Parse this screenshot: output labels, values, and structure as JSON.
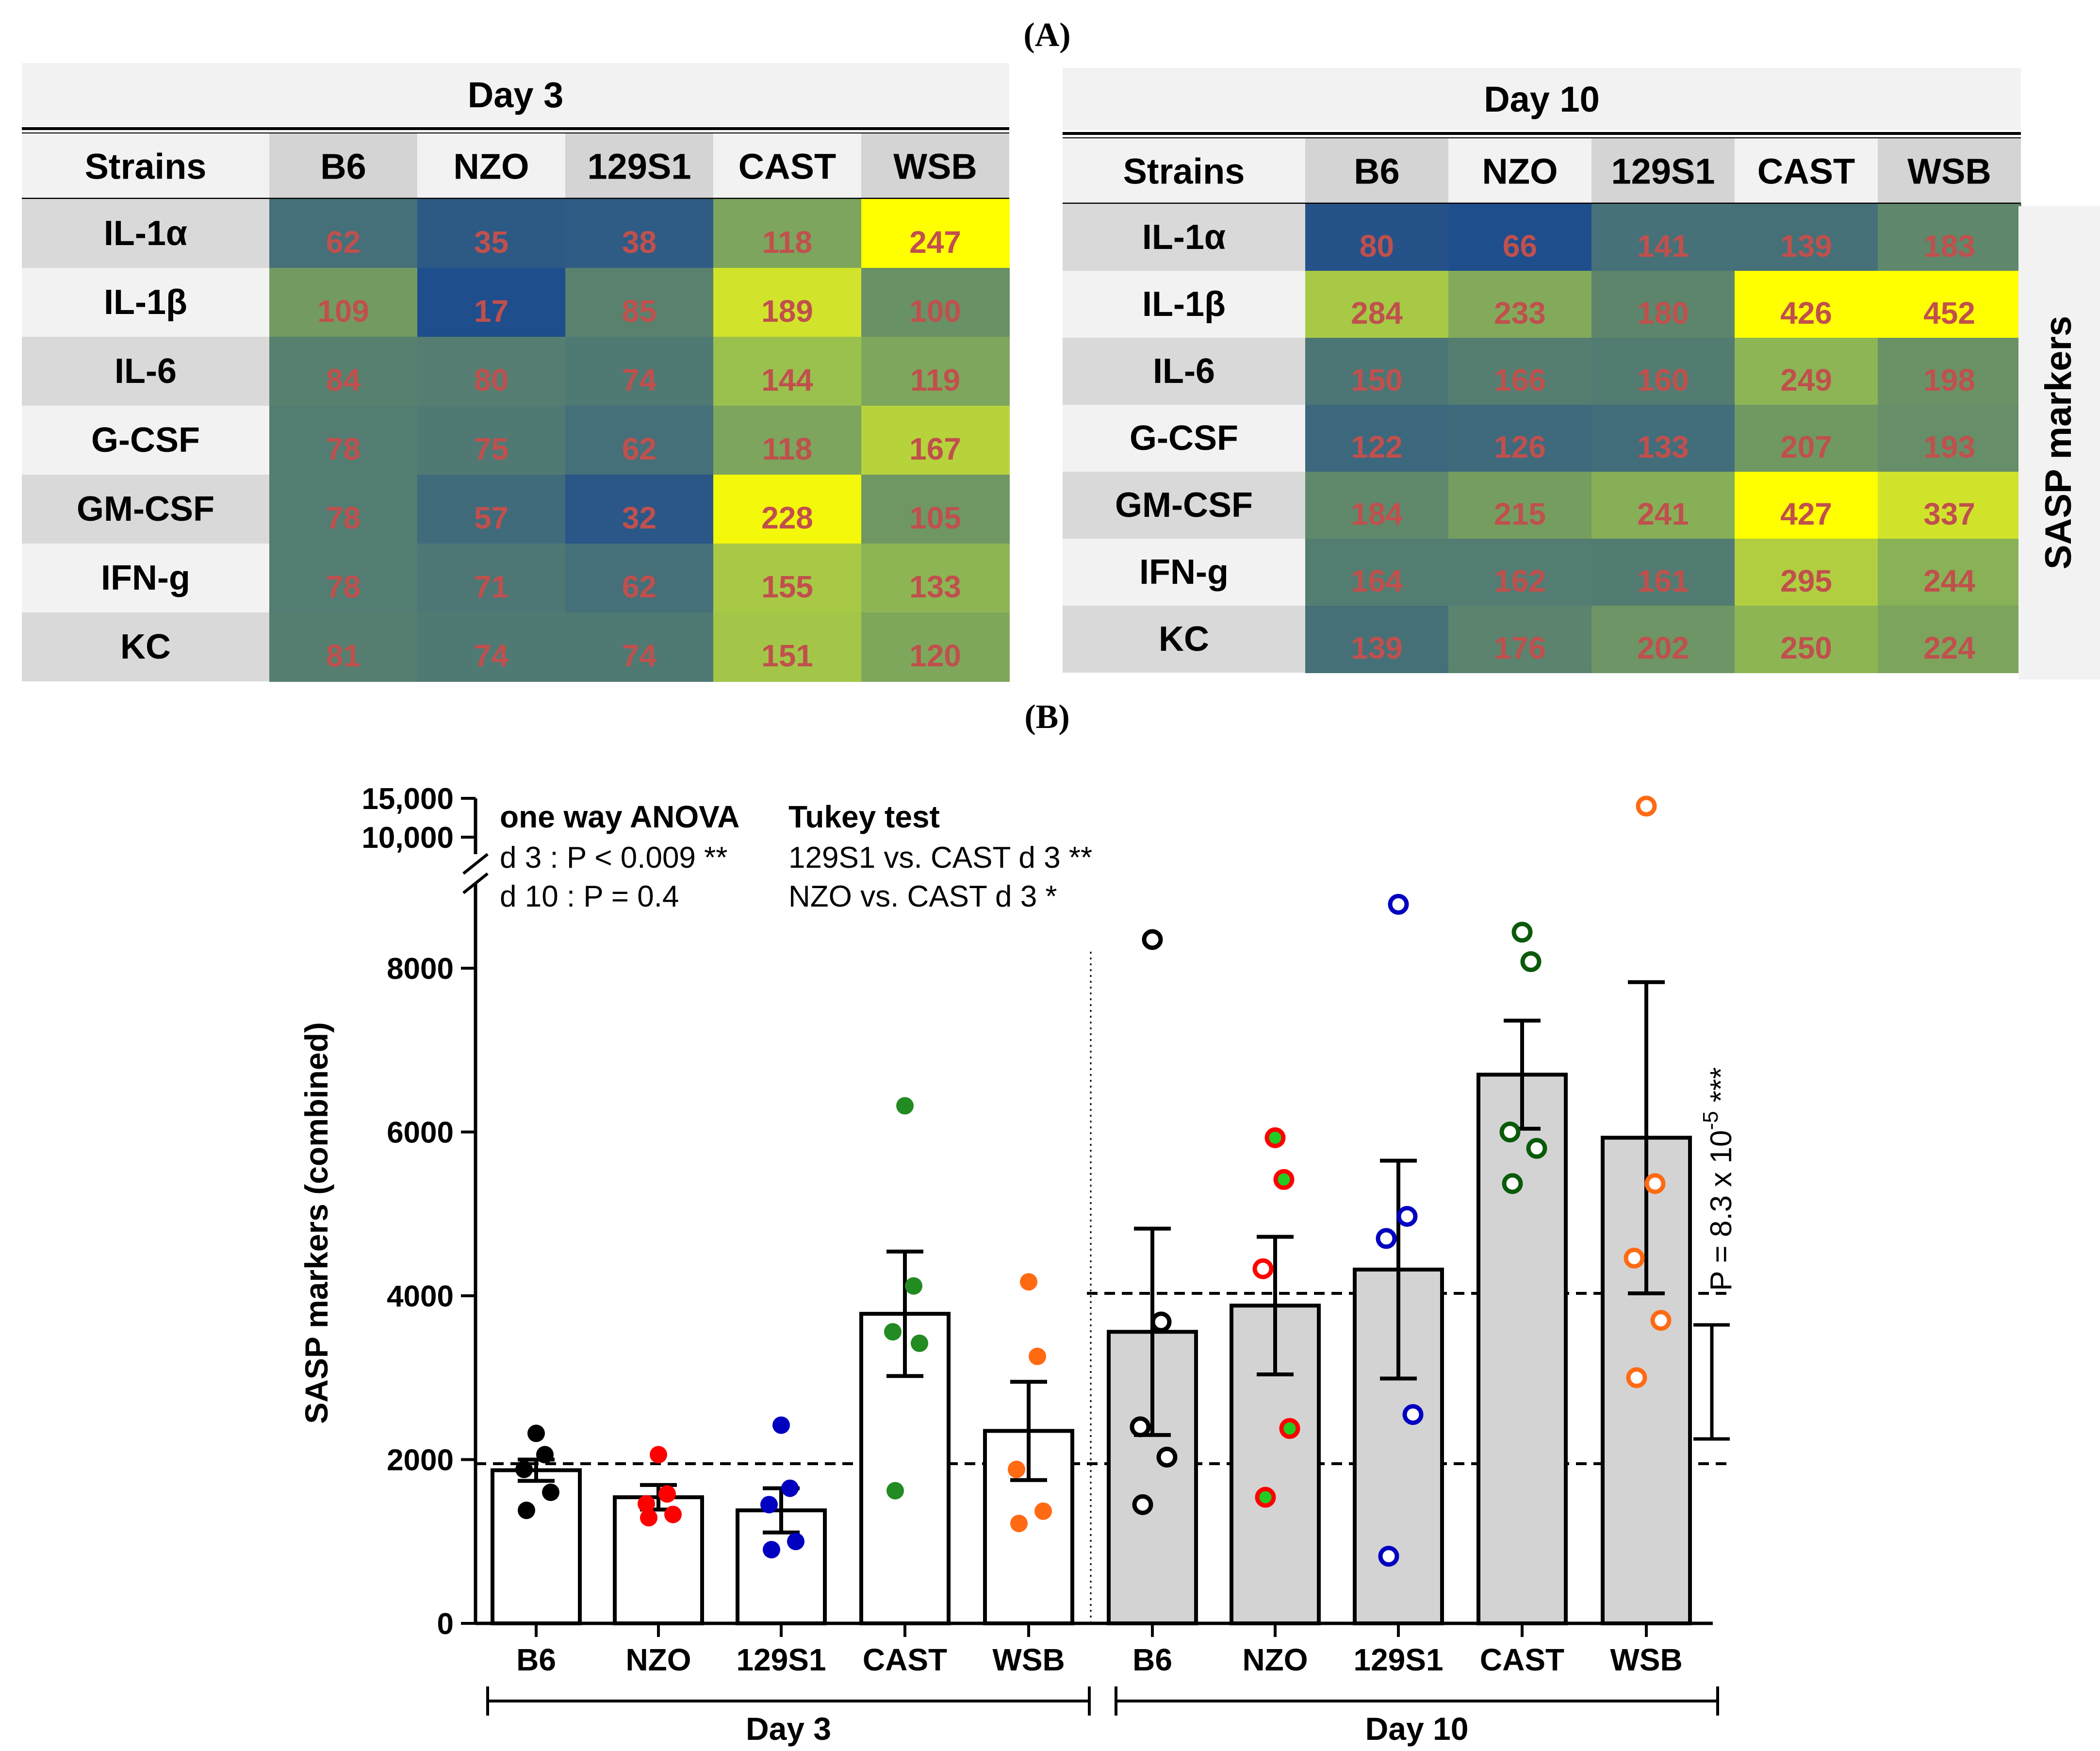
{
  "panel_a_label": "(A)",
  "panel_b_label": "(B)",
  "colors": {
    "blue": "#1f4e8c",
    "yellow": "#ffff00",
    "value_text": "#c0504d",
    "header_gray": "#d4d4d4",
    "row_gray": "#d9d9d9",
    "bar_gray": "#d3d3d3"
  },
  "tables": [
    {
      "title": "Day 3",
      "row_header": "Strains",
      "strains": [
        "B6",
        "NZO",
        "129S1",
        "CAST",
        "WSB"
      ],
      "markers": [
        "IL-1α",
        "IL-1β",
        "IL-6",
        "G-CSF",
        "GM-CSF",
        "IFN-g",
        "KC"
      ],
      "values": [
        [
          62,
          35,
          38,
          118,
          247
        ],
        [
          109,
          17,
          85,
          189,
          100
        ],
        [
          84,
          80,
          74,
          144,
          119
        ],
        [
          78,
          75,
          62,
          118,
          167
        ],
        [
          78,
          57,
          32,
          228,
          105
        ],
        [
          78,
          71,
          62,
          155,
          133
        ],
        [
          81,
          74,
          74,
          151,
          120
        ]
      ]
    },
    {
      "title": "Day 10",
      "row_header": "Strains",
      "strains": [
        "B6",
        "NZO",
        "129S1",
        "CAST",
        "WSB"
      ],
      "markers": [
        "IL-1α",
        "IL-1β",
        "IL-6",
        "G-CSF",
        "GM-CSF",
        "IFN-g",
        "KC"
      ],
      "values": [
        [
          80,
          66,
          141,
          139,
          183
        ],
        [
          284,
          233,
          180,
          426,
          452
        ],
        [
          150,
          166,
          160,
          249,
          198
        ],
        [
          122,
          126,
          133,
          207,
          193
        ],
        [
          184,
          215,
          241,
          427,
          337
        ],
        [
          164,
          162,
          161,
          295,
          244
        ],
        [
          139,
          176,
          202,
          250,
          224
        ]
      ]
    }
  ],
  "side_label": "SASP markers",
  "chart_data": {
    "type": "bar",
    "ylabel": "SASP markers (combined)",
    "ylim": [
      0,
      15000
    ],
    "axis_break": [
      9000,
      10000
    ],
    "yticks": [
      "0",
      "2000",
      "4000",
      "6000",
      "8000",
      "10,000",
      "15,000"
    ],
    "categories": [
      "B6",
      "NZO",
      "129S1",
      "CAST",
      "WSB",
      "B6",
      "NZO",
      "129S1",
      "CAST",
      "WSB"
    ],
    "groups": [
      "Day 3",
      "Day 10"
    ],
    "means": [
      1870,
      1540,
      1380,
      3780,
      2350,
      3560,
      3880,
      4320,
      6700,
      5930
    ],
    "sem": [
      130,
      150,
      270,
      760,
      600,
      1260,
      840,
      1330,
      660,
      1900
    ],
    "points": [
      [
        2320,
        2060,
        1880,
        1600,
        1380
      ],
      [
        2060,
        1580,
        1460,
        1330,
        1290
      ],
      [
        2420,
        1650,
        1450,
        1000,
        900
      ],
      [
        6320,
        4120,
        3560,
        3420,
        1620
      ],
      [
        4170,
        3260,
        1880,
        1370,
        1220
      ],
      [
        8350,
        3680,
        2400,
        2030,
        1450
      ],
      [
        5930,
        5420,
        4330,
        2380,
        1540
      ],
      [
        8780,
        4970,
        4700,
        2550,
        820
      ],
      [
        8440,
        8080,
        6000,
        5800,
        5370
      ],
      [
        14000,
        5370,
        4460,
        3700,
        3000
      ]
    ],
    "point_colors": [
      "#000000",
      "#ff0000",
      "#0000c0",
      "#228b22",
      "#ff6a13",
      "#000000",
      "#ff0000",
      "#0000c0",
      "#0a5a0a",
      "#ff6a13"
    ],
    "reference_lines": [
      1950,
      4030
    ],
    "annotations": {
      "anova_title": "one way ANOVA",
      "anova_d3": "d 3 : P < 0.009 **",
      "anova_d10": "d 10 : P = 0.4",
      "tukey_title": "Tukey test",
      "tukey_1": "129S1 vs. CAST d 3 **",
      "tukey_2": "NZO vs. CAST d 3 *",
      "p_value": "P = 8.3 x 10",
      "p_exp": "-5",
      "p_stars": "***"
    }
  }
}
